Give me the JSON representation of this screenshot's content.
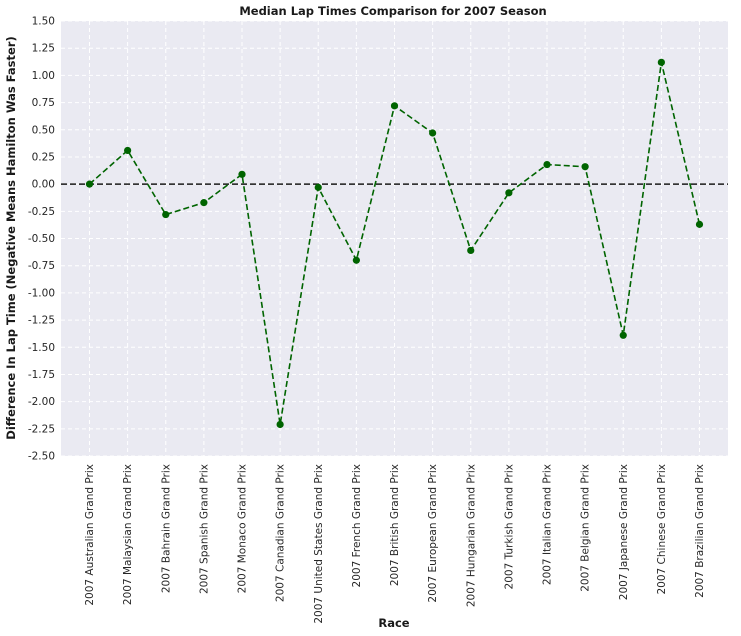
{
  "chart_data": {
    "type": "line",
    "title": "Median Lap Times Comparison for 2007 Season",
    "xlabel": "Race",
    "ylabel": "Difference In Lap Time (Negative Means Hamilton Was Faster)",
    "ylim": [
      -2.5,
      1.5
    ],
    "yticks": [
      "-2.50",
      "-2.25",
      "-2.00",
      "-1.75",
      "-1.50",
      "-1.25",
      "-1.00",
      "-0.75",
      "-0.50",
      "-0.25",
      "0.00",
      "0.25",
      "0.50",
      "0.75",
      "1.00",
      "1.25",
      "1.50"
    ],
    "categories": [
      "2007 Australian Grand Prix",
      "2007 Malaysian Grand Prix",
      "2007 Bahrain Grand Prix",
      "2007 Spanish Grand Prix",
      "2007 Monaco Grand Prix",
      "2007 Canadian Grand Prix",
      "2007 United States Grand Prix",
      "2007 French Grand Prix",
      "2007 British Grand Prix",
      "2007 European Grand Prix",
      "2007 Hungarian Grand Prix",
      "2007 Turkish Grand Prix",
      "2007 Italian Grand Prix",
      "2007 Belgian Grand Prix",
      "2007 Japanese Grand Prix",
      "2007 Chinese Grand Prix",
      "2007 Brazilian Grand Prix"
    ],
    "values": [
      0.0,
      0.31,
      -0.28,
      -0.17,
      0.09,
      -2.21,
      -0.03,
      -0.7,
      0.72,
      0.47,
      -0.61,
      -0.08,
      0.18,
      0.16,
      -1.39,
      1.12,
      -0.37
    ],
    "reference_line": 0.0,
    "grid": true,
    "line_style": "dashed",
    "colors": {
      "series": "#006400",
      "reference": "#1a1a1a",
      "plot_background": "#eaeaf2",
      "grid": "#ffffff"
    }
  }
}
